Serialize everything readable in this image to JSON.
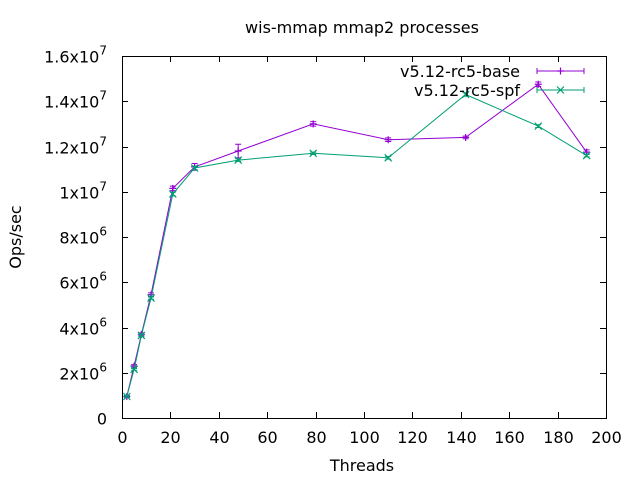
{
  "chart_data": {
    "type": "line",
    "title": "wis-mmap mmap2 processes",
    "xlabel": "Threads",
    "ylabel": "Ops/sec",
    "xlim": [
      0,
      200
    ],
    "ylim": [
      0,
      16000000
    ],
    "x_ticks": [
      {
        "value": 0,
        "label": "0"
      },
      {
        "value": 20,
        "label": "20"
      },
      {
        "value": 40,
        "label": "40"
      },
      {
        "value": 60,
        "label": "60"
      },
      {
        "value": 80,
        "label": "80"
      },
      {
        "value": 100,
        "label": "100"
      },
      {
        "value": 120,
        "label": "120"
      },
      {
        "value": 140,
        "label": "140"
      },
      {
        "value": 160,
        "label": "160"
      },
      {
        "value": 180,
        "label": "180"
      },
      {
        "value": 200,
        "label": "200"
      }
    ],
    "y_ticks": [
      {
        "value": 0,
        "mant": "0",
        "exp": ""
      },
      {
        "value": 2000000,
        "mant": "2x10",
        "exp": "6"
      },
      {
        "value": 4000000,
        "mant": "4x10",
        "exp": "6"
      },
      {
        "value": 6000000,
        "mant": "6x10",
        "exp": "6"
      },
      {
        "value": 8000000,
        "mant": "8x10",
        "exp": "6"
      },
      {
        "value": 10000000,
        "mant": "1x10",
        "exp": "7"
      },
      {
        "value": 12000000,
        "mant": "1.2x10",
        "exp": "7"
      },
      {
        "value": 14000000,
        "mant": "1.4x10",
        "exp": "7"
      },
      {
        "value": 16000000,
        "mant": "1.6x10",
        "exp": "7"
      }
    ],
    "grid": false,
    "legend_position": "top-right",
    "series": [
      {
        "name": "v5.12-rc5-base",
        "color": "#9400d3",
        "marker": "plus",
        "x": [
          2,
          5,
          8,
          12,
          21,
          30,
          48,
          79,
          110,
          142,
          172,
          192
        ],
        "y": [
          950000,
          2300000,
          3700000,
          5450000,
          10150000,
          11100000,
          11800000,
          13000000,
          12300000,
          12400000,
          14750000,
          11750000
        ],
        "err": [
          50000,
          60000,
          60000,
          80000,
          100000,
          150000,
          300000,
          100000,
          80000,
          60000,
          100000,
          100000
        ]
      },
      {
        "name": "v5.12-rc5-spf",
        "color": "#009e73",
        "marker": "x",
        "x": [
          2,
          5,
          8,
          12,
          21,
          30,
          48,
          79,
          110,
          142,
          172,
          192
        ],
        "y": [
          950000,
          2150000,
          3650000,
          5300000,
          9900000,
          11050000,
          11400000,
          11700000,
          11500000,
          14300000,
          12900000,
          11600000
        ],
        "err": [
          30000,
          40000,
          40000,
          50000,
          80000,
          80000,
          60000,
          50000,
          60000,
          80000,
          60000,
          60000
        ]
      }
    ]
  }
}
